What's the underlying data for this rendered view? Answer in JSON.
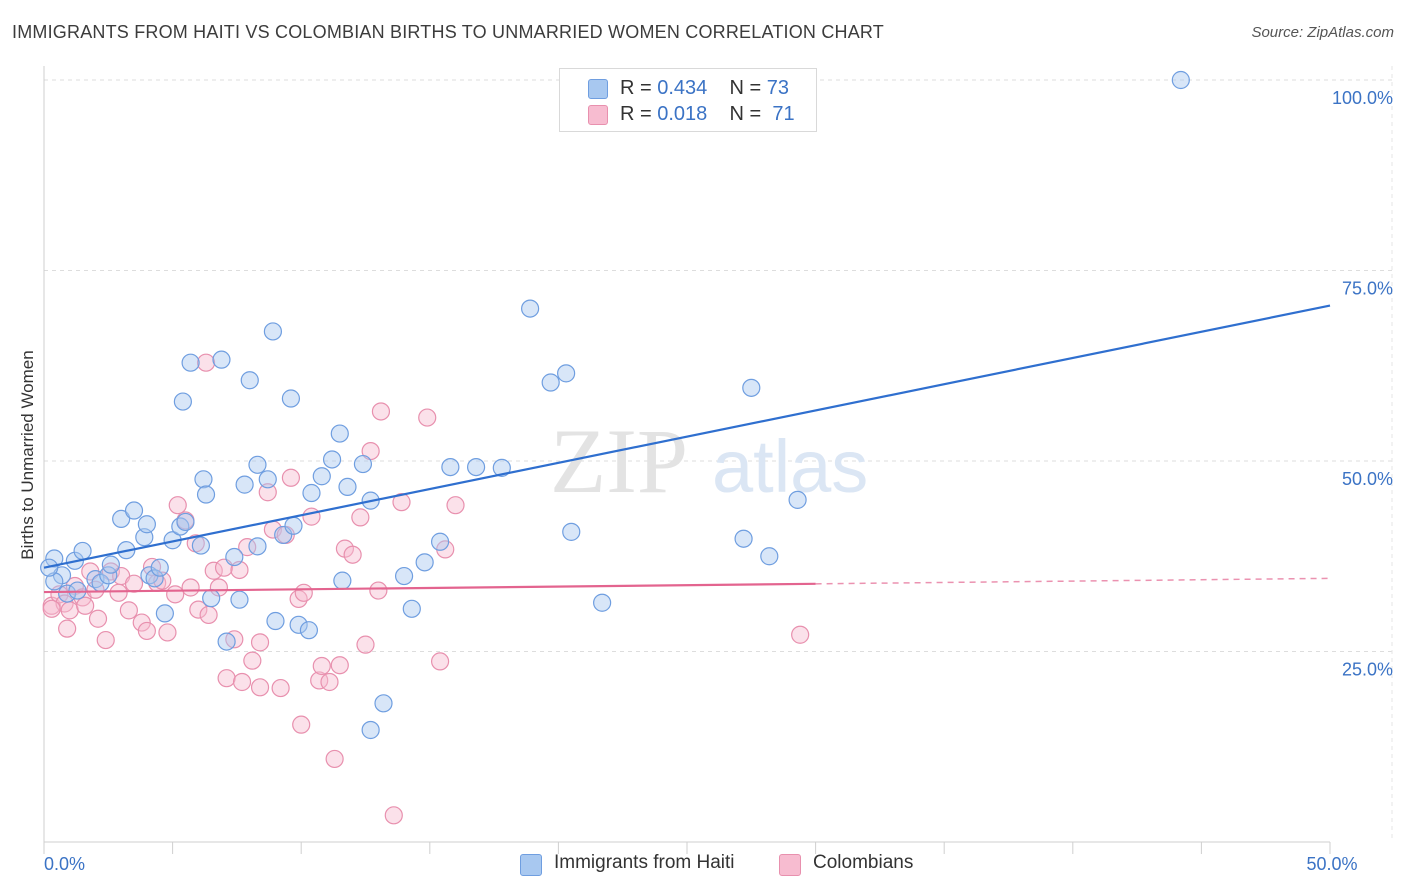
{
  "header": {
    "title": "IMMIGRANTS FROM HAITI VS COLOMBIAN BIRTHS TO UNMARRIED WOMEN CORRELATION CHART",
    "source": "Source: ZipAtlas.com"
  },
  "watermark": {
    "part1": "ZIP",
    "part2": "atlas"
  },
  "legend": {
    "rows": [
      {
        "r_label": "R = ",
        "r_value": "0.434",
        "n_label": "N = ",
        "n_value": "73"
      },
      {
        "r_label": "R = ",
        "r_value": "0.018",
        "n_label": "N = ",
        "n_value": "71"
      }
    ]
  },
  "bottom_legend": {
    "series1": "Immigrants from Haiti",
    "series2": "Colombians"
  },
  "colors": {
    "blue_fill": "#a8c8f0",
    "blue_stroke": "#6f9ee0",
    "blue_line": "#2f6fcf",
    "pink_fill": "#f7bcd0",
    "pink_stroke": "#e890ae",
    "pink_line": "#e3648f",
    "axis_label": "#3b73c5",
    "grid": "#dddddd"
  },
  "chart_data": {
    "type": "scatter",
    "title": "IMMIGRANTS FROM HAITI VS COLOMBIAN BIRTHS TO UNMARRIED WOMEN CORRELATION CHART",
    "xlabel": "",
    "ylabel": "Births to Unmarried Women",
    "xlim": [
      0,
      50
    ],
    "ylim": [
      0,
      102
    ],
    "x_ticks_labeled": [
      {
        "value": 0,
        "label": "0.0%"
      },
      {
        "value": 50,
        "label": "50.0%"
      }
    ],
    "x_minor_ticks": [
      0,
      5,
      10,
      15,
      20,
      25,
      30,
      35,
      40,
      45,
      50
    ],
    "y_ticks": [
      {
        "value": 25,
        "label": "25.0%"
      },
      {
        "value": 50,
        "label": "50.0%"
      },
      {
        "value": 75,
        "label": "75.0%"
      },
      {
        "value": 100,
        "label": "100.0%"
      }
    ],
    "grid": true,
    "legend_position": "top-center",
    "series": [
      {
        "name": "Immigrants from Haiti",
        "R": 0.434,
        "N": 73,
        "trend": {
          "x": [
            0,
            50
          ],
          "y": [
            36.0,
            70.4
          ],
          "dashed_from": null
        },
        "points": [
          [
            0.4,
            37.2
          ],
          [
            0.7,
            35.0
          ],
          [
            0.9,
            32.6
          ],
          [
            1.2,
            36.9
          ],
          [
            1.5,
            38.2
          ],
          [
            2.0,
            34.5
          ],
          [
            2.2,
            34.0
          ],
          [
            2.5,
            35.0
          ],
          [
            3.0,
            42.4
          ],
          [
            3.2,
            38.3
          ],
          [
            3.5,
            43.5
          ],
          [
            3.9,
            40.0
          ],
          [
            4.0,
            41.7
          ],
          [
            4.1,
            35.0
          ],
          [
            4.3,
            34.6
          ],
          [
            4.5,
            36.0
          ],
          [
            4.7,
            30.0
          ],
          [
            5.0,
            39.6
          ],
          [
            5.3,
            41.4
          ],
          [
            5.5,
            42.0
          ],
          [
            5.4,
            57.8
          ],
          [
            5.7,
            62.9
          ],
          [
            6.1,
            38.9
          ],
          [
            6.2,
            47.6
          ],
          [
            6.3,
            45.6
          ],
          [
            6.5,
            32.0
          ],
          [
            6.9,
            63.3
          ],
          [
            7.1,
            26.3
          ],
          [
            7.4,
            37.4
          ],
          [
            7.6,
            31.8
          ],
          [
            7.8,
            46.9
          ],
          [
            8.0,
            60.6
          ],
          [
            8.3,
            38.8
          ],
          [
            8.3,
            49.5
          ],
          [
            8.7,
            47.6
          ],
          [
            8.9,
            67.0
          ],
          [
            9.0,
            29.0
          ],
          [
            9.3,
            40.3
          ],
          [
            9.6,
            58.2
          ],
          [
            9.7,
            41.5
          ],
          [
            9.9,
            28.5
          ],
          [
            10.3,
            27.8
          ],
          [
            10.4,
            45.8
          ],
          [
            10.8,
            48.0
          ],
          [
            11.2,
            50.2
          ],
          [
            11.5,
            53.6
          ],
          [
            11.6,
            34.3
          ],
          [
            11.8,
            46.6
          ],
          [
            12.4,
            49.6
          ],
          [
            12.7,
            44.8
          ],
          [
            13.2,
            18.2
          ],
          [
            12.7,
            14.7
          ],
          [
            14.0,
            34.9
          ],
          [
            14.3,
            30.6
          ],
          [
            14.8,
            36.7
          ],
          [
            15.4,
            39.4
          ],
          [
            15.8,
            49.2
          ],
          [
            16.8,
            49.2
          ],
          [
            17.8,
            49.1
          ],
          [
            18.9,
            70.0
          ],
          [
            19.7,
            60.3
          ],
          [
            20.3,
            61.5
          ],
          [
            20.5,
            40.7
          ],
          [
            21.7,
            31.4
          ],
          [
            27.2,
            39.8
          ],
          [
            27.5,
            59.6
          ],
          [
            28.2,
            37.5
          ],
          [
            29.3,
            44.9
          ],
          [
            44.2,
            100.0
          ],
          [
            0.4,
            34.2
          ],
          [
            1.3,
            33.0
          ],
          [
            2.6,
            36.4
          ],
          [
            0.2,
            36.0
          ]
        ]
      },
      {
        "name": "Colombians",
        "R": 0.018,
        "N": 71,
        "trend": {
          "x": [
            0,
            50
          ],
          "y": [
            32.8,
            34.6
          ],
          "dashed_from": 30
        },
        "points": [
          [
            0.3,
            31.0
          ],
          [
            0.6,
            32.5
          ],
          [
            0.8,
            31.3
          ],
          [
            0.9,
            28.0
          ],
          [
            1.0,
            30.4
          ],
          [
            1.2,
            33.6
          ],
          [
            1.5,
            32.1
          ],
          [
            1.6,
            31.0
          ],
          [
            1.8,
            35.5
          ],
          [
            2.0,
            33.1
          ],
          [
            2.1,
            29.3
          ],
          [
            2.4,
            26.5
          ],
          [
            2.6,
            35.5
          ],
          [
            2.9,
            32.7
          ],
          [
            3.0,
            34.9
          ],
          [
            3.3,
            30.4
          ],
          [
            3.5,
            33.9
          ],
          [
            3.8,
            28.8
          ],
          [
            4.0,
            27.7
          ],
          [
            4.2,
            36.1
          ],
          [
            4.4,
            34.0
          ],
          [
            4.6,
            34.3
          ],
          [
            4.8,
            27.5
          ],
          [
            5.1,
            32.5
          ],
          [
            5.2,
            44.2
          ],
          [
            5.5,
            42.2
          ],
          [
            5.7,
            33.4
          ],
          [
            5.9,
            39.2
          ],
          [
            6.0,
            30.5
          ],
          [
            6.3,
            62.9
          ],
          [
            6.4,
            29.8
          ],
          [
            6.6,
            35.6
          ],
          [
            6.8,
            33.4
          ],
          [
            7.0,
            36.0
          ],
          [
            7.1,
            21.5
          ],
          [
            7.4,
            26.6
          ],
          [
            7.6,
            35.7
          ],
          [
            7.7,
            21.0
          ],
          [
            7.9,
            38.7
          ],
          [
            8.1,
            23.8
          ],
          [
            8.4,
            26.2
          ],
          [
            8.4,
            20.3
          ],
          [
            8.7,
            45.9
          ],
          [
            8.9,
            41.0
          ],
          [
            9.2,
            20.2
          ],
          [
            9.4,
            40.3
          ],
          [
            9.6,
            47.8
          ],
          [
            9.9,
            31.9
          ],
          [
            10.1,
            32.7
          ],
          [
            10.4,
            42.7
          ],
          [
            10.0,
            15.4
          ],
          [
            10.7,
            21.2
          ],
          [
            10.8,
            23.1
          ],
          [
            11.1,
            21.0
          ],
          [
            11.3,
            10.9
          ],
          [
            11.5,
            23.2
          ],
          [
            11.7,
            38.5
          ],
          [
            12.0,
            37.7
          ],
          [
            12.3,
            42.6
          ],
          [
            12.5,
            25.9
          ],
          [
            12.7,
            51.3
          ],
          [
            13.0,
            33.0
          ],
          [
            13.1,
            56.5
          ],
          [
            13.6,
            3.5
          ],
          [
            13.9,
            44.6
          ],
          [
            14.9,
            55.7
          ],
          [
            15.4,
            23.7
          ],
          [
            15.6,
            38.4
          ],
          [
            16.0,
            44.2
          ],
          [
            29.4,
            27.2
          ],
          [
            0.3,
            30.6
          ]
        ]
      }
    ]
  }
}
